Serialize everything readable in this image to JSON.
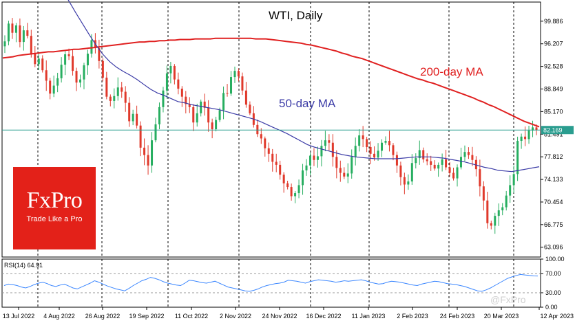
{
  "chart_title": "WTI, Daily",
  "branding": {
    "brand": "FxPro",
    "tagline": "Trade Like a Pro",
    "watermark": "@FxPro"
  },
  "colors": {
    "up": "#27ae60",
    "down": "#e0392b",
    "ma200": "#e02020",
    "ma50": "#3a3aa6",
    "last_price_line": "#2a9d8f",
    "rsi": "#3a86ff",
    "brand_red": "#e32119"
  },
  "chart_data": [
    {
      "type": "line",
      "title": "WTI, Daily",
      "instrument": "WTI",
      "timeframe": "Daily",
      "x_ticks": [
        "13 Jul 2022",
        "4 Aug 2022",
        "26 Aug 2022",
        "19 Sep 2022",
        "11 Oct 2022",
        "2 Nov 2022",
        "24 Nov 2022",
        "16 Dec 2022",
        "11 Jan 2023",
        "2 Feb 2023",
        "24 Feb 2023",
        "20 Mar 2023",
        "12 Apr 2023"
      ],
      "y_ticks": [
        99.886,
        96.207,
        92.528,
        88.849,
        85.17,
        81.491,
        77.812,
        74.133,
        70.454,
        66.775,
        63.096
      ],
      "ylim": [
        61.5,
        103.0
      ],
      "last_price": {
        "value": 82.169,
        "label": "82.169"
      },
      "price_closes": [
        96.6,
        99.5,
        98.0,
        99.2,
        96.5,
        98.4,
        97.5,
        94.6,
        92.9,
        93.8,
        91.9,
        90.2,
        88.1,
        89.4,
        90.6,
        92.8,
        94.5,
        94.2,
        91.8,
        89.9,
        90.4,
        92.7,
        94.6,
        96.8,
        95.5,
        93.4,
        90.7,
        87.6,
        86.9,
        87.7,
        89.1,
        88.4,
        86.6,
        83.6,
        84.8,
        82.9,
        79.3,
        78.1,
        76.4,
        80.5,
        83.1,
        85.9,
        88.6,
        91.4,
        92.6,
        90.4,
        88.9,
        87.6,
        86.4,
        85.9,
        83.4,
        84.9,
        86.8,
        85.8,
        83.4,
        82.3,
        83.8,
        85.4,
        88.2,
        88.1,
        90.8,
        91.8,
        90.9,
        88.6,
        86.3,
        84.9,
        83.0,
        81.5,
        80.8,
        79.2,
        78.3,
        77.0,
        76.5,
        74.9,
        73.5,
        72.9,
        71.4,
        71.9,
        73.2,
        75.6,
        76.4,
        78.0,
        77.3,
        77.9,
        79.6,
        80.5,
        80.1,
        77.8,
        76.0,
        75.2,
        74.6,
        75.1,
        77.8,
        79.6,
        81.3,
        80.7,
        79.4,
        78.3,
        77.7,
        78.8,
        80.1,
        80.4,
        79.7,
        78.1,
        76.4,
        74.5,
        73.3,
        73.8,
        76.8,
        77.6,
        78.9,
        77.4,
        77.1,
        76.5,
        75.9,
        76.5,
        77.4,
        76.1,
        75.2,
        74.3,
        76.1,
        77.8,
        78.6,
        78.1,
        77.3,
        75.8,
        73.0,
        70.7,
        67.0,
        66.6,
        68.2,
        69.1,
        69.6,
        71.5,
        73.2,
        75.0,
        80.4,
        81.1,
        80.7,
        82.1,
        82.6,
        82.17
      ],
      "series": [
        {
          "name": "200-day MA",
          "label": "200-day MA",
          "values": [
            93.9,
            94.0,
            94.1,
            94.3,
            94.4,
            94.5,
            94.6,
            94.7,
            94.8,
            94.9,
            94.9,
            95.0,
            95.1,
            95.2,
            95.3,
            95.3,
            95.4,
            95.5,
            95.6,
            95.7,
            95.8,
            95.9,
            96.0,
            96.1,
            96.2,
            96.3,
            96.4,
            96.5,
            96.5,
            96.6,
            96.6,
            96.7,
            96.7,
            96.8,
            96.8,
            96.9,
            96.9,
            96.9,
            97.0,
            97.0,
            97.0,
            97.0,
            97.1,
            97.1,
            97.1,
            97.1,
            97.1,
            97.1,
            97.1,
            97.1,
            97.0,
            97.0,
            97.0,
            96.9,
            96.8,
            96.7,
            96.6,
            96.5,
            96.4,
            96.3,
            96.1,
            96.0,
            95.8,
            95.6,
            95.4,
            95.2,
            95.0,
            94.7,
            94.5,
            94.2,
            94.0,
            93.8,
            93.5,
            93.2,
            92.9,
            92.6,
            92.3,
            92.0,
            91.7,
            91.4,
            91.1,
            90.8,
            90.5,
            90.3,
            90.0,
            89.8,
            89.5,
            89.2,
            88.9,
            88.6,
            88.3,
            88.0,
            87.7,
            87.4,
            87.0,
            86.7,
            86.3,
            86.0,
            85.6,
            85.2,
            84.8,
            84.4,
            84.0,
            83.6,
            83.3,
            83.0,
            82.7
          ]
        },
        {
          "name": "50-day MA",
          "label": "50-day MA",
          "values": [
            105.0,
            103.2,
            101.3,
            99.5,
            97.7,
            96.0,
            94.5,
            93.3,
            92.4,
            91.7,
            91.1,
            90.4,
            89.6,
            88.8,
            88.2,
            87.8,
            87.3,
            86.8,
            86.6,
            86.3,
            86.1,
            85.9,
            85.7,
            85.5,
            85.2,
            84.9,
            84.6,
            84.3,
            84.0,
            83.6,
            83.1,
            82.6,
            82.1,
            81.6,
            81.0,
            80.4,
            79.8,
            79.4,
            79.1,
            78.8,
            78.5,
            78.2,
            78.0,
            77.8,
            77.7,
            77.6,
            77.5,
            77.5,
            77.5,
            77.5,
            77.6,
            77.7,
            77.8,
            77.8,
            77.8,
            77.7,
            77.6,
            77.4,
            77.2,
            77.0,
            76.7,
            76.4,
            76.1,
            75.9,
            75.6,
            75.5,
            75.4,
            75.6,
            75.8,
            76.0,
            76.2
          ]
        }
      ]
    },
    {
      "type": "line",
      "title": "RSI(14) 64.91",
      "y_ticks": [
        100.0,
        70.0,
        30.0,
        0.0
      ],
      "ylim": [
        0,
        100
      ],
      "levels": [
        70,
        30
      ],
      "series": [
        {
          "name": "RSI(14)",
          "last_value": 64.91,
          "values": [
            45,
            48,
            47,
            45,
            42,
            40,
            43,
            47,
            50,
            52,
            49,
            45,
            43,
            46,
            48,
            44,
            40,
            38,
            42,
            46,
            50,
            55,
            52,
            48,
            44,
            41,
            38,
            36,
            34,
            39,
            45,
            50,
            55,
            58,
            62,
            60,
            57,
            53,
            50,
            48,
            46,
            45,
            50,
            56,
            55,
            53,
            51,
            50,
            52,
            54,
            50,
            46,
            42,
            40,
            38,
            36,
            34,
            33,
            35,
            38,
            42,
            45,
            47,
            49,
            50,
            52,
            56,
            55,
            54,
            52,
            50,
            53,
            55,
            57,
            56,
            55,
            54,
            52,
            53,
            55,
            54,
            55,
            56,
            57,
            55,
            52,
            50,
            48,
            49,
            52,
            54,
            53,
            52,
            50,
            48,
            46,
            45,
            48,
            50,
            52,
            54,
            53,
            51,
            49,
            48,
            47,
            45,
            43,
            40,
            37,
            34,
            33,
            36,
            40,
            45,
            50,
            55,
            60,
            63,
            66,
            68,
            67,
            66,
            65,
            64.91
          ]
        }
      ]
    }
  ]
}
